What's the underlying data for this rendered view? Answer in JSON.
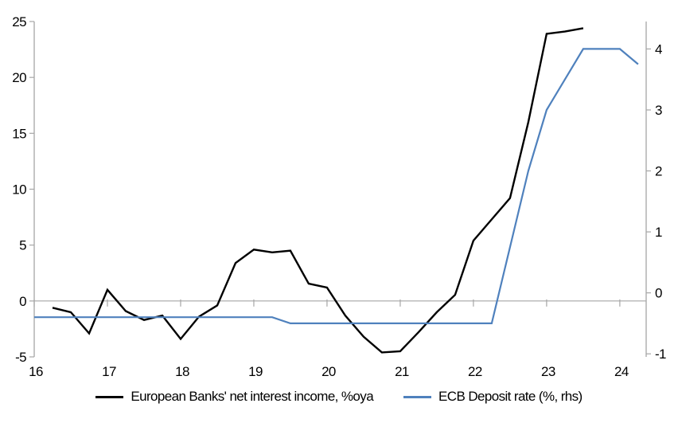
{
  "chart_data": {
    "type": "line",
    "title": "",
    "x_axis": {
      "label": "",
      "range": [
        16,
        24.36
      ],
      "ticks": [
        16,
        17,
        18,
        19,
        20,
        21,
        22,
        23,
        24
      ],
      "tick_labels": [
        "16",
        "17",
        "18",
        "19",
        "20",
        "21",
        "22",
        "23",
        "24"
      ]
    },
    "y_axis_left": {
      "range": [
        -5,
        25
      ],
      "ticks": [
        25,
        20,
        15,
        10,
        5,
        0,
        -5
      ],
      "tick_labels": [
        "25",
        "20",
        "15",
        "10",
        "5",
        "0",
        "-5"
      ]
    },
    "y_axis_right": {
      "range": [
        -1.05,
        4.45
      ],
      "ticks": [
        4,
        3,
        2,
        1,
        0,
        -1
      ],
      "tick_labels": [
        "4",
        "3",
        "2",
        "1",
        "0",
        "-1"
      ]
    },
    "grid": false,
    "legend_position": "bottom",
    "series": [
      {
        "name": "European Banks' net interest income, %oya",
        "axis": "left",
        "color": "#000000",
        "stroke_width": 2.4,
        "x": [
          16.25,
          16.5,
          16.75,
          17.0,
          17.25,
          17.5,
          17.75,
          18.0,
          18.25,
          18.5,
          18.75,
          19.0,
          19.25,
          19.5,
          19.75,
          20.0,
          20.25,
          20.5,
          20.75,
          21.0,
          21.25,
          21.5,
          21.75,
          22.0,
          22.25,
          22.5,
          22.75,
          23.0,
          23.25,
          23.5
        ],
        "values": [
          -0.6,
          -1.0,
          -2.9,
          1.0,
          -0.9,
          -1.7,
          -1.3,
          -3.4,
          -1.4,
          -0.4,
          3.4,
          4.6,
          4.35,
          4.5,
          1.55,
          1.2,
          -1.3,
          -3.2,
          -4.6,
          -4.5,
          -2.8,
          -1.0,
          0.55,
          5.4,
          7.3,
          9.2,
          16.0,
          23.9,
          24.1,
          24.4
        ]
      },
      {
        "name": "ECB Deposit rate (%, rhs)",
        "axis": "right",
        "color": "#4F81BD",
        "stroke_width": 2.2,
        "x": [
          16.0,
          16.25,
          16.5,
          16.75,
          17.0,
          17.25,
          17.5,
          17.75,
          18.0,
          18.25,
          18.5,
          18.75,
          19.0,
          19.25,
          19.5,
          19.75,
          20.0,
          20.25,
          20.5,
          20.75,
          21.0,
          21.25,
          21.5,
          21.75,
          22.0,
          22.25,
          22.5,
          22.75,
          23.0,
          23.25,
          23.5,
          23.75,
          24.0,
          24.25
        ],
        "values": [
          -0.4,
          -0.4,
          -0.4,
          -0.4,
          -0.4,
          -0.4,
          -0.4,
          -0.4,
          -0.4,
          -0.4,
          -0.4,
          -0.4,
          -0.4,
          -0.4,
          -0.5,
          -0.5,
          -0.5,
          -0.5,
          -0.5,
          -0.5,
          -0.5,
          -0.5,
          -0.5,
          -0.5,
          -0.5,
          -0.5,
          0.75,
          2.0,
          3.0,
          3.5,
          4.0,
          4.0,
          4.0,
          3.75
        ]
      }
    ]
  },
  "legend": {
    "series1_label": "European Banks' net interest income, %oya",
    "series2_label": "ECB Deposit rate (%, rhs)"
  },
  "colors": {
    "series1": "#000000",
    "series2": "#4F81BD",
    "axis": "#A6A6A6",
    "text": "#000000"
  }
}
